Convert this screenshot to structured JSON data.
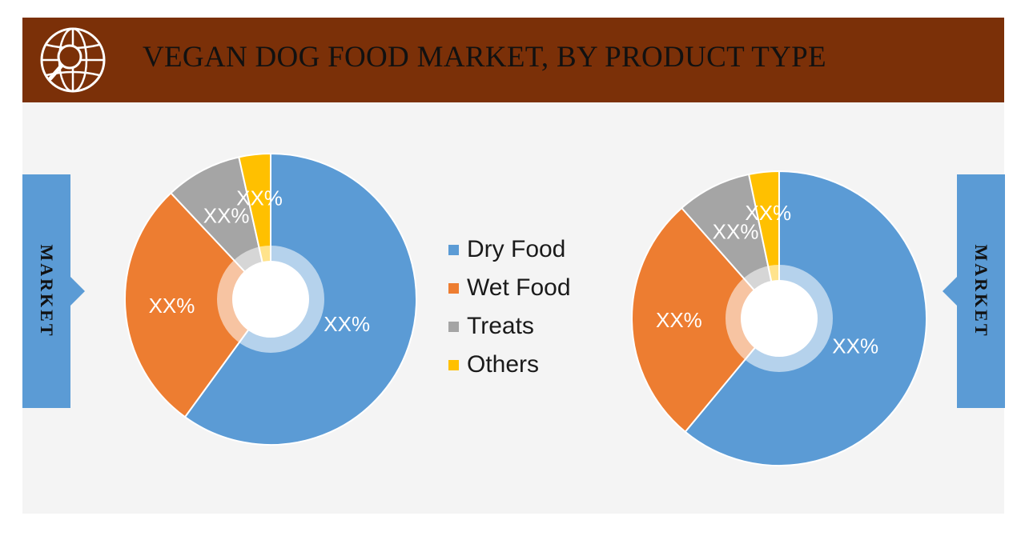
{
  "header": {
    "title": "VEGAN DOG FOOD MARKET, BY PRODUCT TYPE",
    "logo_icon": "globe-magnifier-icon",
    "background_color": "#7b3008"
  },
  "side_tabs": {
    "left_label": "MARKET",
    "right_label": "MARKET",
    "color": "#5b9bd5"
  },
  "legend": {
    "items": [
      {
        "label": "Dry Food",
        "color": "#5b9bd5"
      },
      {
        "label": "Wet Food",
        "color": "#ed7d31"
      },
      {
        "label": "Treats",
        "color": "#a5a5a5"
      },
      {
        "label": "Others",
        "color": "#ffc000"
      }
    ]
  },
  "chart_data": [
    {
      "type": "pie",
      "title": "",
      "categories": [
        "Dry Food",
        "Wet Food",
        "Treats",
        "Others"
      ],
      "values": [
        60,
        28,
        8.5,
        3.5
      ],
      "labels": [
        "XX%",
        "XX%",
        "XX%",
        "XX%"
      ],
      "colors": [
        "#5b9bd5",
        "#ed7d31",
        "#a5a5a5",
        "#ffc000"
      ],
      "donut": true
    },
    {
      "type": "pie",
      "title": "",
      "categories": [
        "Dry Food",
        "Wet Food",
        "Treats",
        "Others"
      ],
      "values": [
        61,
        27.5,
        8.2,
        3.3
      ],
      "labels": [
        "XX%",
        "XX%",
        "XX%",
        "XX%"
      ],
      "colors": [
        "#5b9bd5",
        "#ed7d31",
        "#a5a5a5",
        "#ffc000"
      ],
      "donut": true
    }
  ]
}
